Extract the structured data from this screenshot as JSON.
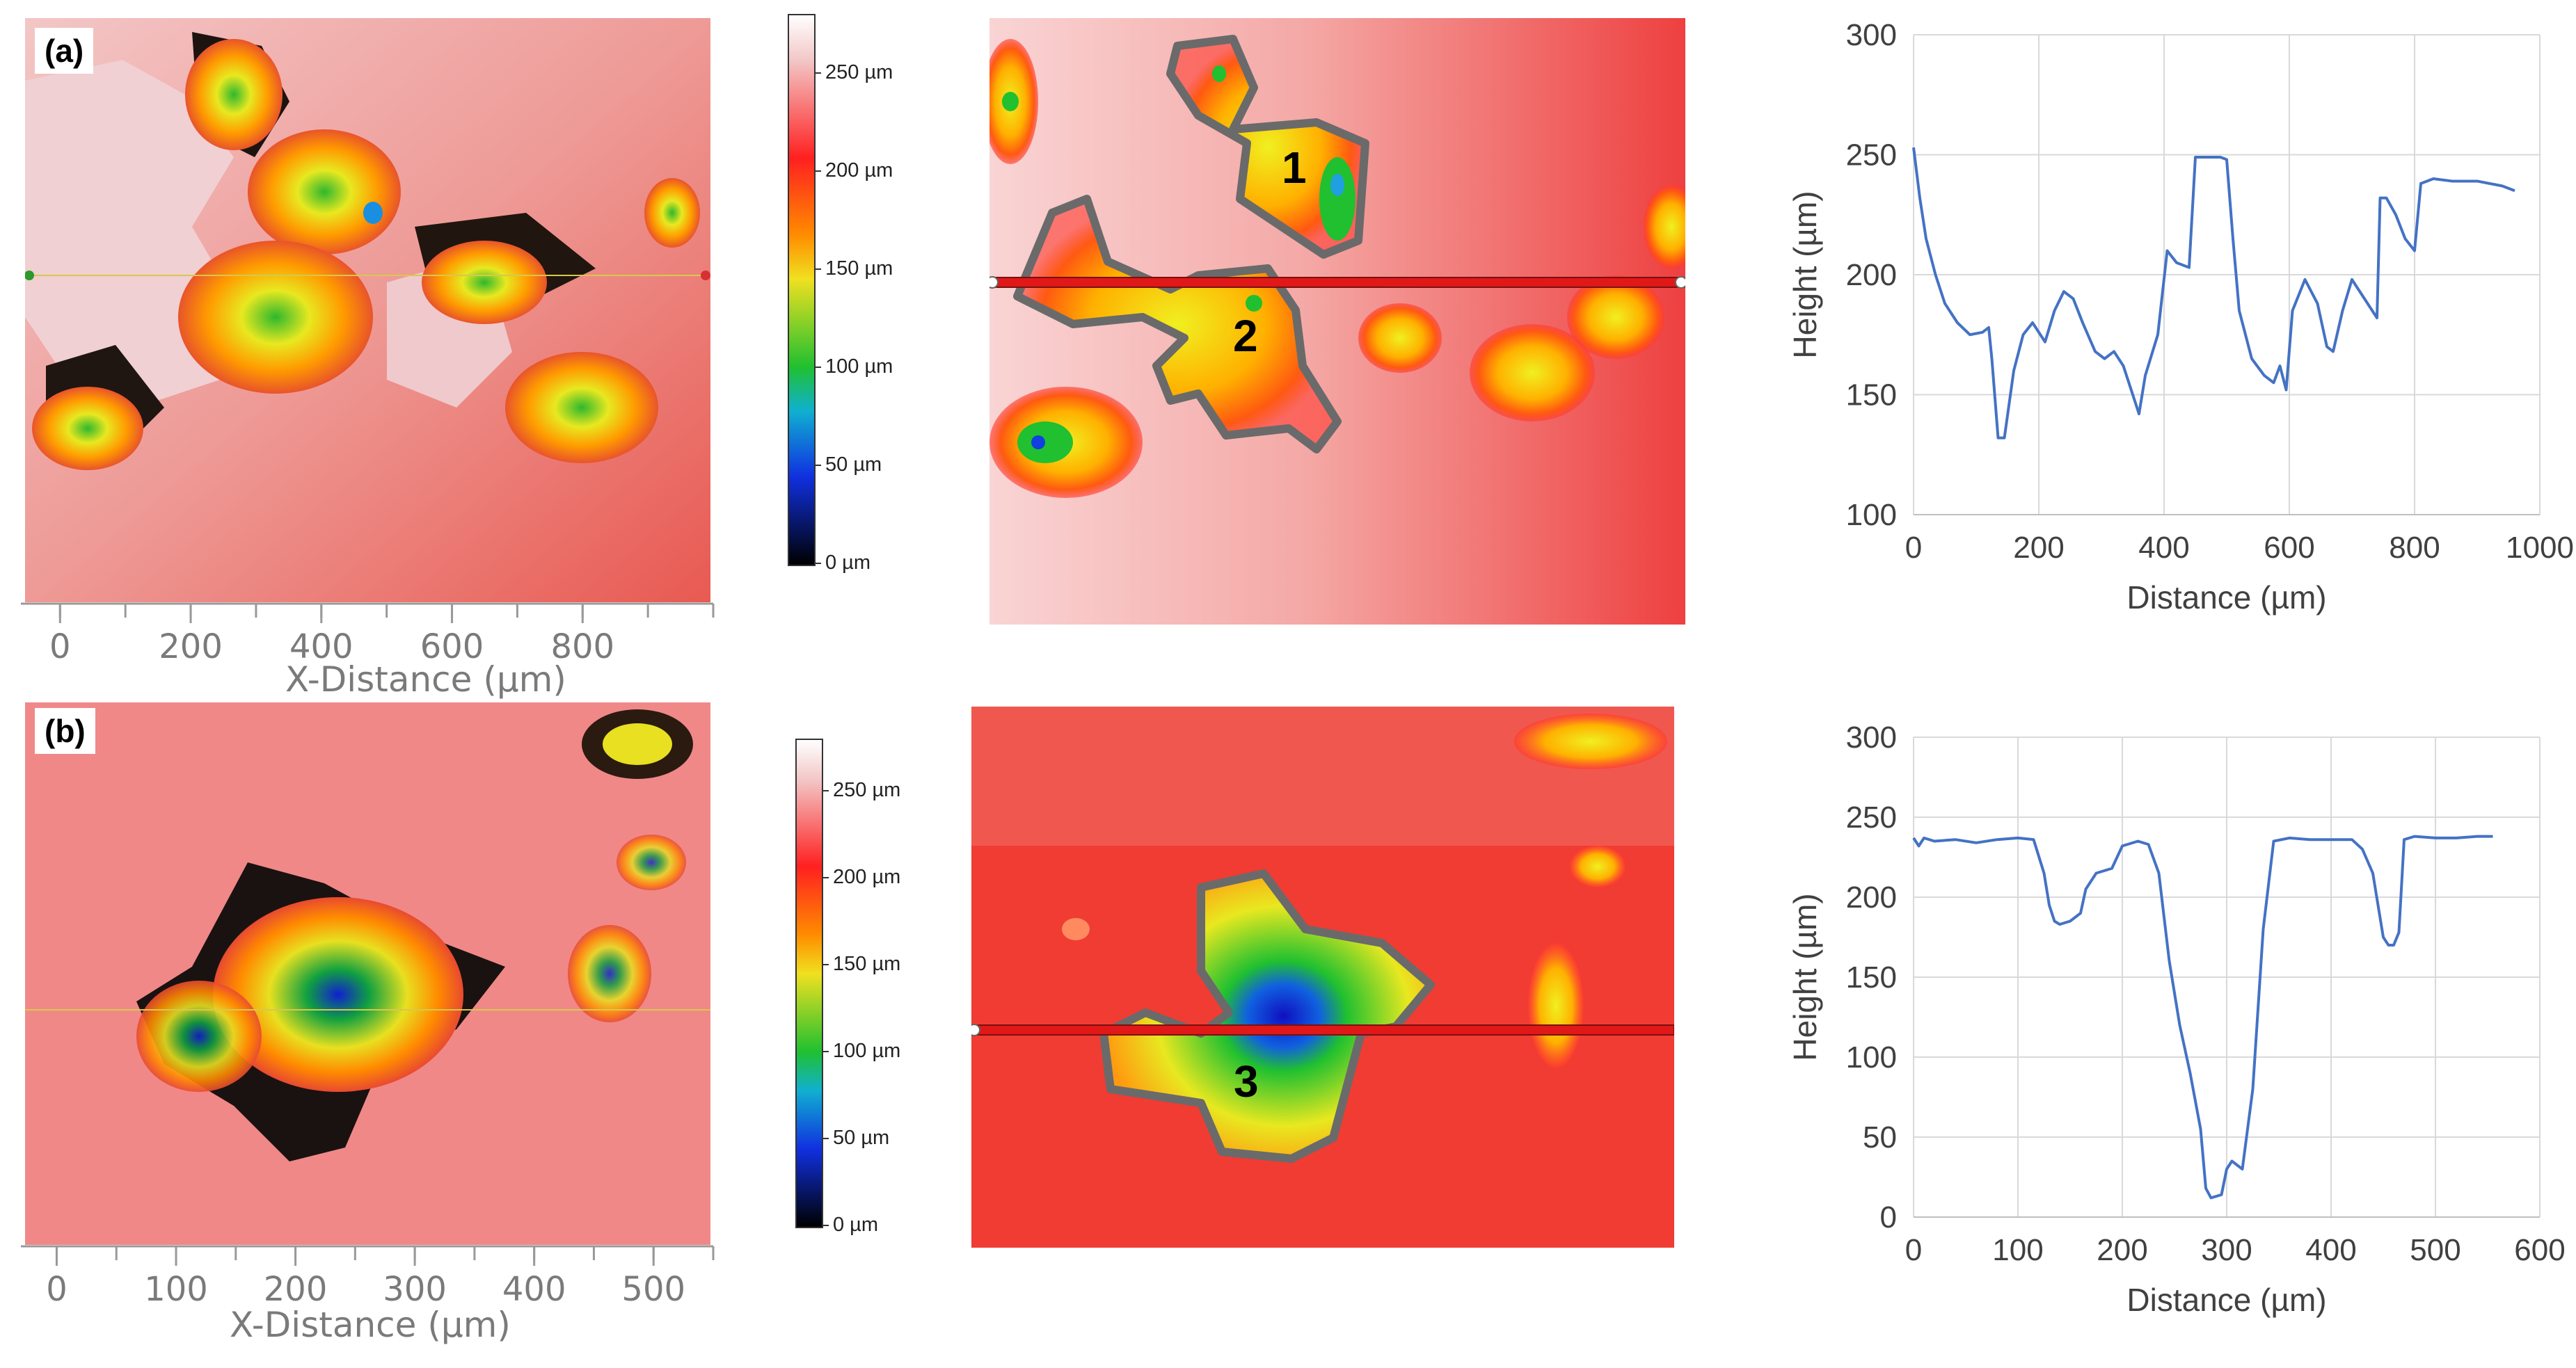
{
  "panels": [
    {
      "label": "(a)",
      "colorbar_ticks": [
        "250 µm",
        "200 µm",
        "150 µm",
        "100 µm",
        "50 µm",
        "0 µm"
      ],
      "colorbar_values": [
        250,
        200,
        150,
        100,
        50,
        0
      ],
      "colorbar_max": 280,
      "xdistance": {
        "title": "X-Distance (µm)",
        "ticks": [
          "0",
          "200",
          "400",
          "600",
          "800"
        ],
        "values": [
          0,
          200,
          400,
          600,
          800
        ],
        "range": [
          -60,
          1000
        ]
      },
      "zones": [
        "1",
        "2"
      ]
    },
    {
      "label": "(b)",
      "colorbar_ticks": [
        "250 µm",
        "200 µm",
        "150 µm",
        "100 µm",
        "50 µm",
        "0 µm"
      ],
      "colorbar_values": [
        250,
        200,
        150,
        100,
        50,
        0
      ],
      "colorbar_max": 280,
      "xdistance": {
        "title": "X-Distance (µm)",
        "ticks": [
          "0",
          "100",
          "200",
          "300",
          "400",
          "500"
        ],
        "values": [
          0,
          100,
          200,
          300,
          400,
          500
        ],
        "range": [
          -30,
          550
        ]
      },
      "zones": [
        "3"
      ]
    }
  ],
  "chart_data": [
    {
      "type": "line",
      "xlabel": "Distance (µm)",
      "ylabel": "Height (µm)",
      "xlim": [
        0,
        1000
      ],
      "ylim": [
        100,
        300
      ],
      "xticks": [
        0,
        200,
        400,
        600,
        800,
        1000
      ],
      "yticks": [
        100,
        150,
        200,
        250,
        300
      ],
      "grid": true,
      "color": "#4472c4",
      "series": [
        {
          "x": [
            0,
            10,
            20,
            35,
            50,
            70,
            90,
            110,
            120,
            125,
            135,
            145,
            160,
            175,
            190,
            210,
            225,
            240,
            255,
            270,
            290,
            305,
            320,
            335,
            350,
            360,
            370,
            390,
            405,
            420,
            440,
            450,
            470,
            490,
            500,
            510,
            520,
            540,
            560,
            575,
            585,
            595,
            605,
            625,
            645,
            660,
            670,
            685,
            700,
            720,
            740,
            745,
            755,
            770,
            785,
            800,
            810,
            830,
            860,
            900,
            940,
            960
          ],
          "y": [
            253,
            232,
            215,
            200,
            188,
            180,
            175,
            176,
            178,
            165,
            132,
            132,
            160,
            175,
            180,
            172,
            185,
            193,
            190,
            180,
            168,
            165,
            168,
            162,
            150,
            142,
            158,
            175,
            210,
            205,
            203,
            249,
            249,
            249,
            248,
            215,
            185,
            165,
            158,
            155,
            162,
            152,
            185,
            198,
            188,
            170,
            168,
            185,
            198,
            190,
            182,
            232,
            232,
            225,
            215,
            210,
            238,
            240,
            239,
            239,
            237,
            235
          ]
        }
      ]
    },
    {
      "type": "line",
      "xlabel": "Distance (µm)",
      "ylabel": "Height (µm)",
      "xlim": [
        0,
        600
      ],
      "ylim": [
        0,
        300
      ],
      "xticks": [
        0,
        100,
        200,
        300,
        400,
        500,
        600
      ],
      "yticks": [
        0,
        50,
        100,
        150,
        200,
        250,
        300
      ],
      "grid": true,
      "color": "#4472c4",
      "series": [
        {
          "x": [
            0,
            5,
            10,
            20,
            40,
            60,
            80,
            100,
            115,
            125,
            130,
            135,
            140,
            150,
            160,
            165,
            175,
            190,
            200,
            215,
            225,
            235,
            245,
            255,
            265,
            275,
            280,
            285,
            295,
            300,
            305,
            315,
            325,
            335,
            345,
            360,
            380,
            400,
            420,
            430,
            440,
            445,
            450,
            455,
            460,
            465,
            470,
            480,
            500,
            520,
            540,
            555
          ],
          "y": [
            237,
            232,
            237,
            235,
            236,
            234,
            236,
            237,
            236,
            215,
            195,
            185,
            183,
            185,
            190,
            205,
            215,
            218,
            232,
            235,
            233,
            215,
            160,
            120,
            90,
            55,
            18,
            12,
            14,
            30,
            35,
            30,
            80,
            180,
            235,
            237,
            236,
            236,
            236,
            230,
            215,
            195,
            175,
            170,
            170,
            178,
            236,
            238,
            237,
            237,
            238,
            238
          ]
        }
      ]
    }
  ]
}
